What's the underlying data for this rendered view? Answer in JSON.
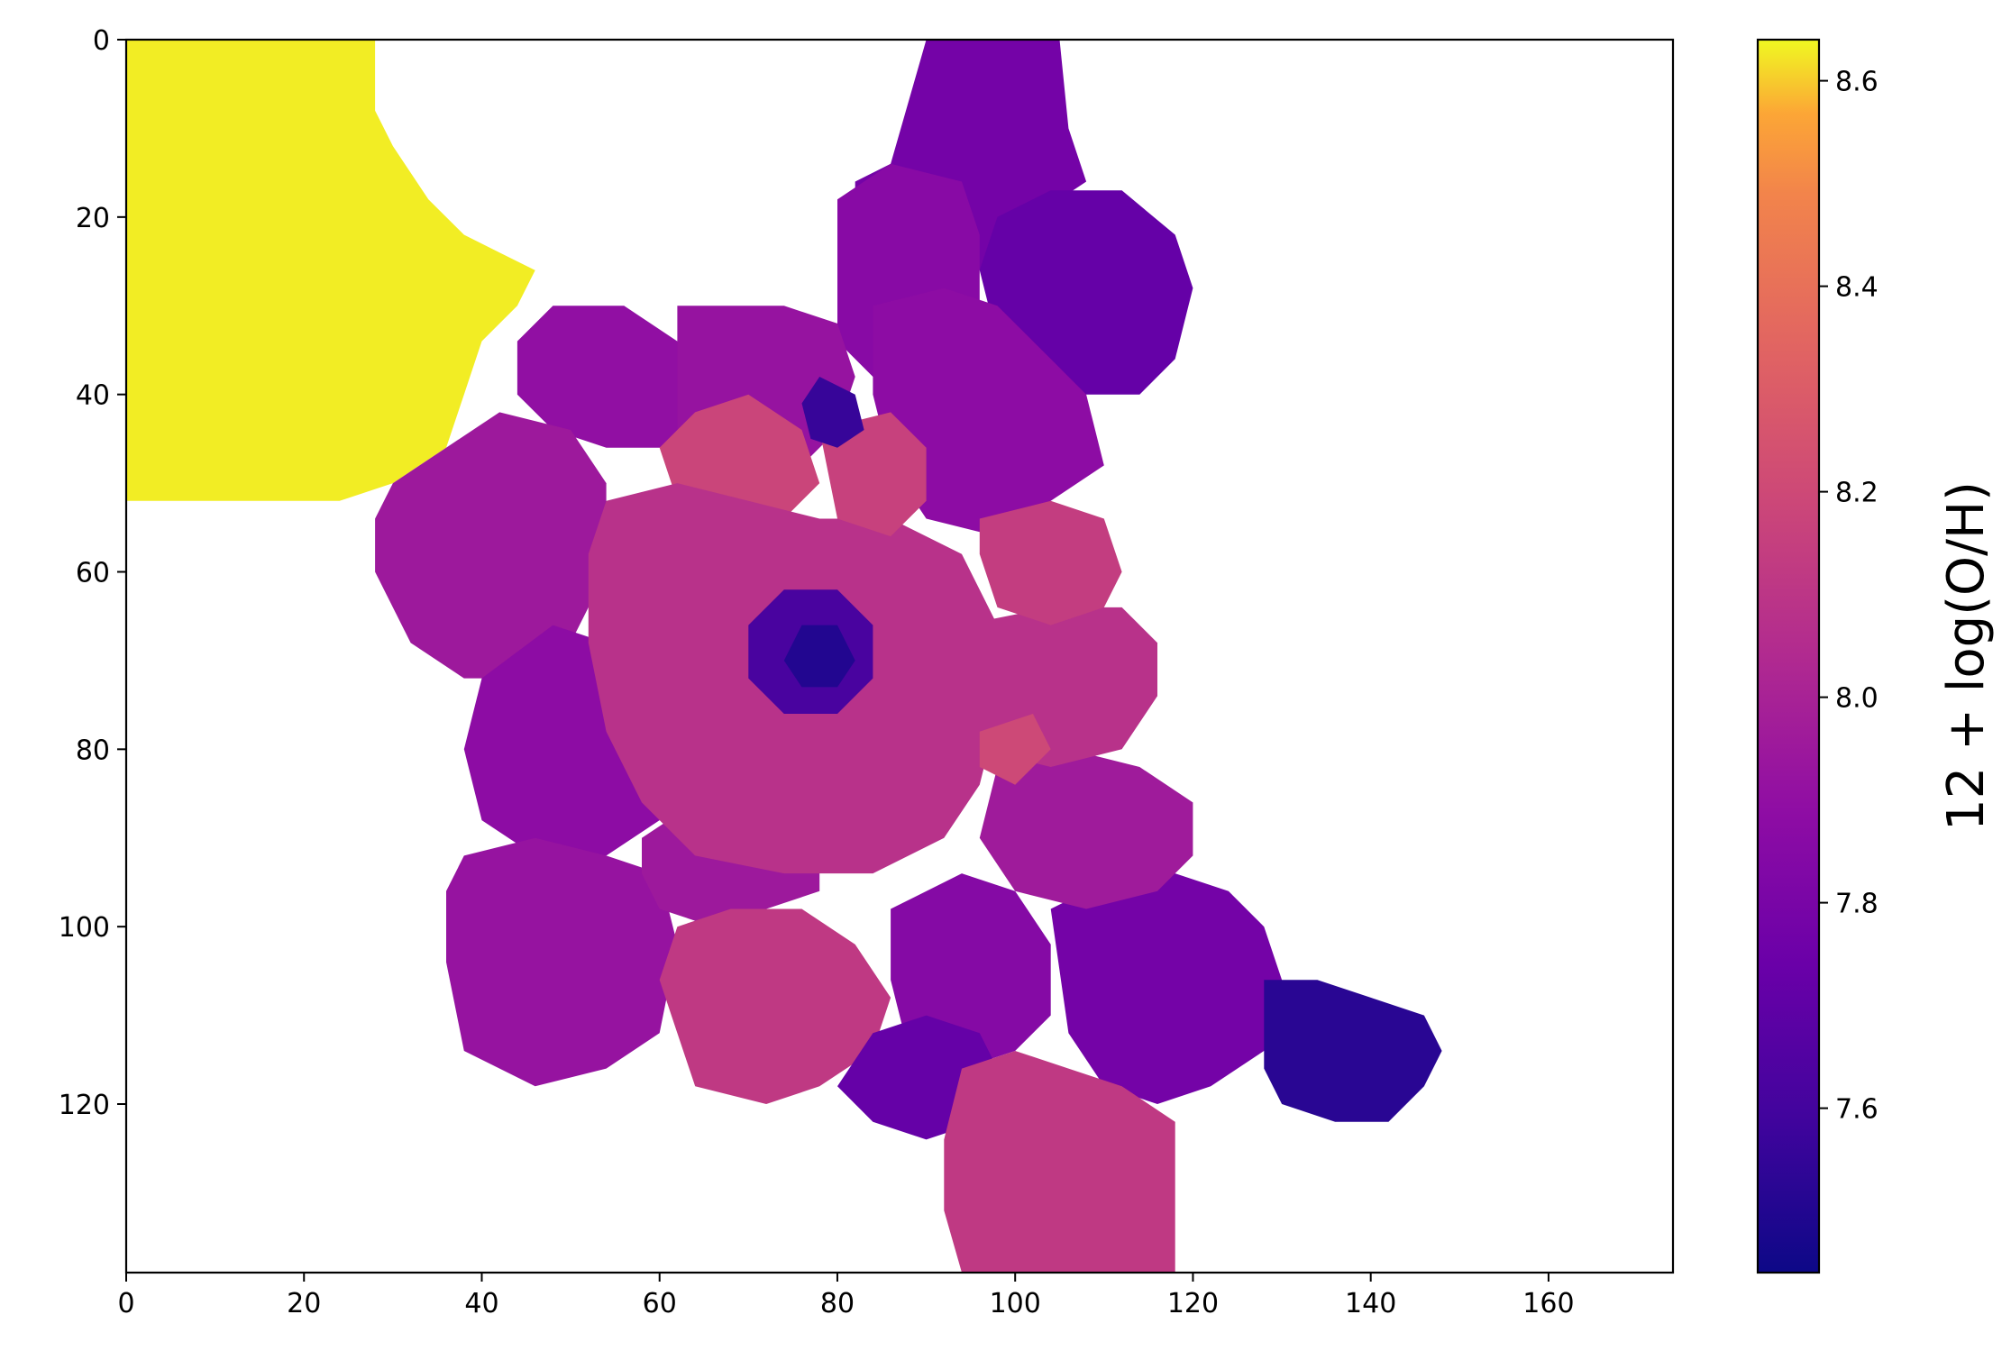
{
  "chart_data": {
    "type": "heatmap",
    "title": "",
    "xlabel": "",
    "ylabel": "",
    "xlim": [
      0,
      174
    ],
    "ylim": [
      139,
      0
    ],
    "y_inverted": true,
    "grid": false,
    "colormap": "plasma",
    "x_ticks": [
      "0",
      "20",
      "40",
      "60",
      "80",
      "100",
      "120",
      "140",
      "160"
    ],
    "y_ticks": [
      "0",
      "20",
      "40",
      "60",
      "80",
      "100",
      "120"
    ],
    "colorbar": {
      "label": "12 + log(O/H)",
      "range": [
        7.44,
        8.64
      ],
      "ticks": [
        "7.6",
        "7.8",
        "8.0",
        "8.2",
        "8.4",
        "8.6"
      ]
    },
    "regions": [
      {
        "value": 8.63,
        "polygon": [
          [
            0,
            0
          ],
          [
            28,
            0
          ],
          [
            28,
            8
          ],
          [
            30,
            12
          ],
          [
            34,
            18
          ],
          [
            38,
            22
          ],
          [
            42,
            24
          ],
          [
            46,
            26
          ],
          [
            44,
            30
          ],
          [
            40,
            34
          ],
          [
            38,
            40
          ],
          [
            36,
            46
          ],
          [
            30,
            50
          ],
          [
            24,
            52
          ],
          [
            12,
            52
          ],
          [
            0,
            52
          ]
        ]
      },
      {
        "value": 7.78,
        "polygon": [
          [
            90,
            0
          ],
          [
            105,
            0
          ],
          [
            106,
            10
          ],
          [
            108,
            16
          ],
          [
            102,
            20
          ],
          [
            98,
            24
          ],
          [
            96,
            26
          ],
          [
            90,
            26
          ],
          [
            84,
            28
          ],
          [
            82,
            22
          ],
          [
            82,
            16
          ],
          [
            86,
            14
          ]
        ]
      },
      {
        "value": 7.72,
        "polygon": [
          [
            98,
            20
          ],
          [
            104,
            17
          ],
          [
            112,
            17
          ],
          [
            118,
            22
          ],
          [
            120,
            28
          ],
          [
            118,
            36
          ],
          [
            114,
            40
          ],
          [
            108,
            40
          ],
          [
            102,
            38
          ],
          [
            98,
            34
          ],
          [
            96,
            26
          ]
        ]
      },
      {
        "value": 7.86,
        "polygon": [
          [
            80,
            18
          ],
          [
            86,
            14
          ],
          [
            94,
            16
          ],
          [
            96,
            22
          ],
          [
            96,
            30
          ],
          [
            98,
            36
          ],
          [
            92,
            38
          ],
          [
            84,
            38
          ],
          [
            80,
            34
          ],
          [
            80,
            28
          ]
        ]
      },
      {
        "value": 7.88,
        "polygon": [
          [
            84,
            30
          ],
          [
            92,
            28
          ],
          [
            98,
            30
          ],
          [
            104,
            36
          ],
          [
            108,
            40
          ],
          [
            110,
            48
          ],
          [
            104,
            52
          ],
          [
            98,
            56
          ],
          [
            90,
            54
          ],
          [
            86,
            48
          ],
          [
            84,
            40
          ]
        ]
      },
      {
        "value": 7.9,
        "polygon": [
          [
            48,
            30
          ],
          [
            56,
            30
          ],
          [
            62,
            34
          ],
          [
            66,
            36
          ],
          [
            66,
            42
          ],
          [
            60,
            46
          ],
          [
            54,
            46
          ],
          [
            48,
            44
          ],
          [
            44,
            40
          ],
          [
            44,
            34
          ]
        ]
      },
      {
        "value": 7.92,
        "polygon": [
          [
            62,
            30
          ],
          [
            74,
            30
          ],
          [
            80,
            32
          ],
          [
            82,
            38
          ],
          [
            80,
            44
          ],
          [
            76,
            48
          ],
          [
            68,
            48
          ],
          [
            62,
            44
          ],
          [
            62,
            36
          ]
        ]
      },
      {
        "value": 7.95,
        "polygon": [
          [
            30,
            50
          ],
          [
            36,
            46
          ],
          [
            42,
            42
          ],
          [
            50,
            44
          ],
          [
            54,
            50
          ],
          [
            54,
            60
          ],
          [
            50,
            68
          ],
          [
            44,
            72
          ],
          [
            38,
            72
          ],
          [
            32,
            68
          ],
          [
            28,
            60
          ],
          [
            28,
            54
          ]
        ]
      },
      {
        "value": 7.88,
        "polygon": [
          [
            40,
            72
          ],
          [
            48,
            66
          ],
          [
            54,
            68
          ],
          [
            60,
            72
          ],
          [
            62,
            80
          ],
          [
            60,
            88
          ],
          [
            54,
            92
          ],
          [
            46,
            92
          ],
          [
            40,
            88
          ],
          [
            38,
            80
          ]
        ]
      },
      {
        "value": 7.92,
        "polygon": [
          [
            38,
            92
          ],
          [
            46,
            90
          ],
          [
            54,
            92
          ],
          [
            60,
            94
          ],
          [
            62,
            102
          ],
          [
            60,
            112
          ],
          [
            54,
            116
          ],
          [
            46,
            118
          ],
          [
            38,
            114
          ],
          [
            36,
            104
          ],
          [
            36,
            96
          ]
        ]
      },
      {
        "value": 7.95,
        "polygon": [
          [
            58,
            90
          ],
          [
            64,
            86
          ],
          [
            72,
            86
          ],
          [
            78,
            90
          ],
          [
            78,
            96
          ],
          [
            72,
            98
          ],
          [
            66,
            100
          ],
          [
            60,
            98
          ],
          [
            58,
            94
          ]
        ]
      },
      {
        "value": 8.12,
        "polygon": [
          [
            62,
            100
          ],
          [
            68,
            98
          ],
          [
            76,
            98
          ],
          [
            82,
            102
          ],
          [
            86,
            108
          ],
          [
            84,
            114
          ],
          [
            78,
            118
          ],
          [
            72,
            120
          ],
          [
            64,
            118
          ],
          [
            62,
            112
          ],
          [
            60,
            106
          ]
        ]
      },
      {
        "value": 7.85,
        "polygon": [
          [
            86,
            98
          ],
          [
            94,
            94
          ],
          [
            100,
            96
          ],
          [
            104,
            102
          ],
          [
            104,
            110
          ],
          [
            100,
            114
          ],
          [
            94,
            116
          ],
          [
            88,
            114
          ],
          [
            86,
            106
          ]
        ]
      },
      {
        "value": 7.78,
        "polygon": [
          [
            104,
            98
          ],
          [
            112,
            94
          ],
          [
            118,
            94
          ],
          [
            124,
            96
          ],
          [
            128,
            100
          ],
          [
            130,
            106
          ],
          [
            128,
            114
          ],
          [
            122,
            118
          ],
          [
            116,
            120
          ],
          [
            110,
            118
          ],
          [
            106,
            112
          ]
        ]
      },
      {
        "value": 7.52,
        "polygon": [
          [
            128,
            106
          ],
          [
            134,
            106
          ],
          [
            140,
            108
          ],
          [
            146,
            110
          ],
          [
            148,
            114
          ],
          [
            146,
            118
          ],
          [
            142,
            122
          ],
          [
            136,
            122
          ],
          [
            130,
            120
          ],
          [
            128,
            116
          ]
        ]
      },
      {
        "value": 7.72,
        "polygon": [
          [
            84,
            112
          ],
          [
            90,
            110
          ],
          [
            96,
            112
          ],
          [
            98,
            116
          ],
          [
            96,
            122
          ],
          [
            90,
            124
          ],
          [
            84,
            122
          ],
          [
            80,
            118
          ]
        ]
      },
      {
        "value": 8.12,
        "polygon": [
          [
            94,
            116
          ],
          [
            100,
            114
          ],
          [
            106,
            116
          ],
          [
            112,
            118
          ],
          [
            118,
            122
          ],
          [
            118,
            130
          ],
          [
            118,
            139
          ],
          [
            94,
            139
          ],
          [
            92,
            132
          ],
          [
            92,
            124
          ]
        ]
      },
      {
        "value": 7.96,
        "polygon": [
          [
            98,
            82
          ],
          [
            106,
            80
          ],
          [
            114,
            82
          ],
          [
            120,
            86
          ],
          [
            120,
            92
          ],
          [
            116,
            96
          ],
          [
            108,
            98
          ],
          [
            100,
            96
          ],
          [
            96,
            90
          ]
        ]
      },
      {
        "value": 8.08,
        "polygon": [
          [
            94,
            66
          ],
          [
            104,
            64
          ],
          [
            112,
            64
          ],
          [
            116,
            68
          ],
          [
            116,
            74
          ],
          [
            112,
            80
          ],
          [
            104,
            82
          ],
          [
            96,
            80
          ],
          [
            92,
            74
          ]
        ]
      },
      {
        "value": 8.18,
        "polygon": [
          [
            64,
            42
          ],
          [
            70,
            40
          ],
          [
            76,
            44
          ],
          [
            78,
            50
          ],
          [
            74,
            54
          ],
          [
            68,
            54
          ],
          [
            62,
            52
          ],
          [
            60,
            46
          ]
        ]
      },
      {
        "value": 8.08,
        "polygon": [
          [
            54,
            52
          ],
          [
            62,
            50
          ],
          [
            70,
            52
          ],
          [
            78,
            54
          ],
          [
            86,
            54
          ],
          [
            94,
            58
          ],
          [
            98,
            66
          ],
          [
            98,
            76
          ],
          [
            96,
            84
          ],
          [
            92,
            90
          ],
          [
            84,
            94
          ],
          [
            74,
            94
          ],
          [
            64,
            92
          ],
          [
            58,
            86
          ],
          [
            54,
            78
          ],
          [
            52,
            68
          ],
          [
            52,
            58
          ]
        ]
      },
      {
        "value": 8.16,
        "polygon": [
          [
            78,
            44
          ],
          [
            86,
            42
          ],
          [
            90,
            46
          ],
          [
            90,
            52
          ],
          [
            86,
            56
          ],
          [
            80,
            54
          ]
        ]
      },
      {
        "value": 8.2,
        "polygon": [
          [
            96,
            78
          ],
          [
            102,
            76
          ],
          [
            104,
            80
          ],
          [
            100,
            84
          ],
          [
            96,
            82
          ]
        ]
      },
      {
        "value": 8.14,
        "polygon": [
          [
            96,
            54
          ],
          [
            104,
            52
          ],
          [
            110,
            54
          ],
          [
            112,
            60
          ],
          [
            110,
            64
          ],
          [
            104,
            66
          ],
          [
            98,
            64
          ],
          [
            96,
            58
          ]
        ]
      },
      {
        "value": 7.56,
        "polygon": [
          [
            78,
            38
          ],
          [
            82,
            40
          ],
          [
            83,
            44
          ],
          [
            80,
            46
          ],
          [
            77,
            45
          ],
          [
            76,
            41
          ]
        ]
      },
      {
        "value": 7.62,
        "polygon": [
          [
            74,
            62
          ],
          [
            80,
            62
          ],
          [
            84,
            66
          ],
          [
            84,
            72
          ],
          [
            80,
            76
          ],
          [
            74,
            76
          ],
          [
            70,
            72
          ],
          [
            70,
            66
          ]
        ]
      },
      {
        "value": 7.5,
        "polygon": [
          [
            76,
            66
          ],
          [
            80,
            66
          ],
          [
            82,
            70
          ],
          [
            80,
            73
          ],
          [
            76,
            73
          ],
          [
            74,
            70
          ]
        ]
      }
    ]
  }
}
